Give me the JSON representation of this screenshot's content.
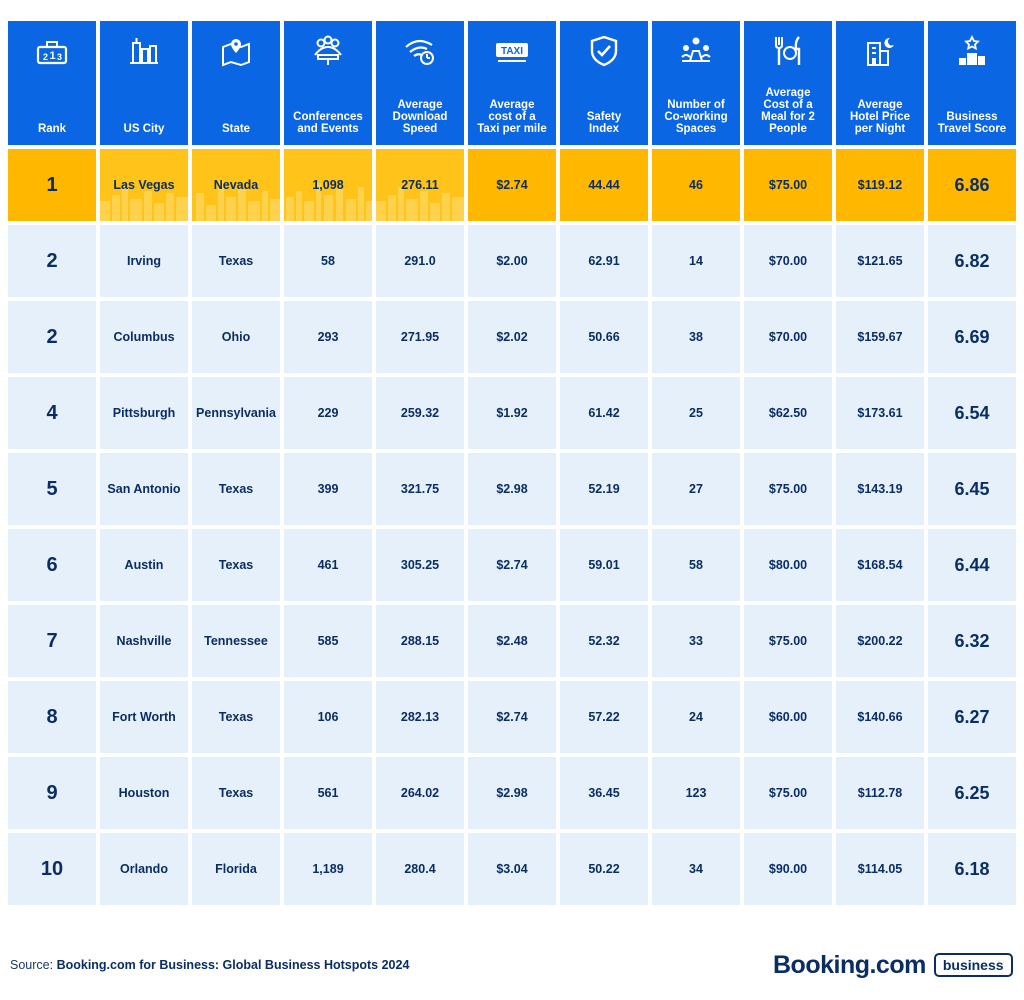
{
  "chart_data": {
    "type": "table",
    "columns": [
      {
        "key": "rank",
        "label": "Rank",
        "icon": "trophy-podium-icon"
      },
      {
        "key": "city",
        "label": "US City",
        "icon": "city-buildings-icon"
      },
      {
        "key": "state",
        "label": "State",
        "icon": "map-pin-icon"
      },
      {
        "key": "conferences",
        "label": "Conferences\nand Events",
        "icon": "conference-people-icon"
      },
      {
        "key": "download",
        "label": "Average\nDownload\nSpeed",
        "icon": "wifi-speed-icon"
      },
      {
        "key": "taxi",
        "label": "Average\ncost of a\nTaxi per mile",
        "icon": "taxi-icon"
      },
      {
        "key": "safety",
        "label": "Safety\nIndex",
        "icon": "shield-check-icon"
      },
      {
        "key": "coworking",
        "label": "Number of\nCo-working\nSpaces",
        "icon": "coworking-desk-icon"
      },
      {
        "key": "meal",
        "label": "Average\nCost of a\nMeal for 2\nPeople",
        "icon": "fork-plate-knife-icon"
      },
      {
        "key": "hotel",
        "label": "Average\nHotel Price\nper Night",
        "icon": "hotel-moon-icon"
      },
      {
        "key": "score",
        "label": "Business\nTravel Score",
        "icon": "podium-star-icon"
      }
    ],
    "rows": [
      {
        "rank": "1",
        "city": "Las Vegas",
        "state": "Nevada",
        "conferences": "1,098",
        "download": "276.11",
        "taxi": "$2.74",
        "safety": "44.44",
        "coworking": "46",
        "meal": "$75.00",
        "hotel": "$119.12",
        "score": "6.86"
      },
      {
        "rank": "2",
        "city": "Irving",
        "state": "Texas",
        "conferences": "58",
        "download": "291.0",
        "taxi": "$2.00",
        "safety": "62.91",
        "coworking": "14",
        "meal": "$70.00",
        "hotel": "$121.65",
        "score": "6.82"
      },
      {
        "rank": "2",
        "city": "Columbus",
        "state": "Ohio",
        "conferences": "293",
        "download": "271.95",
        "taxi": "$2.02",
        "safety": "50.66",
        "coworking": "38",
        "meal": "$70.00",
        "hotel": "$159.67",
        "score": "6.69"
      },
      {
        "rank": "4",
        "city": "Pittsburgh",
        "state": "Pennsylvania",
        "conferences": "229",
        "download": "259.32",
        "taxi": "$1.92",
        "safety": "61.42",
        "coworking": "25",
        "meal": "$62.50",
        "hotel": "$173.61",
        "score": "6.54"
      },
      {
        "rank": "5",
        "city": "San Antonio",
        "state": "Texas",
        "conferences": "399",
        "download": "321.75",
        "taxi": "$2.98",
        "safety": "52.19",
        "coworking": "27",
        "meal": "$75.00",
        "hotel": "$143.19",
        "score": "6.45"
      },
      {
        "rank": "6",
        "city": "Austin",
        "state": "Texas",
        "conferences": "461",
        "download": "305.25",
        "taxi": "$2.74",
        "safety": "59.01",
        "coworking": "58",
        "meal": "$80.00",
        "hotel": "$168.54",
        "score": "6.44"
      },
      {
        "rank": "7",
        "city": "Nashville",
        "state": "Tennessee",
        "conferences": "585",
        "download": "288.15",
        "taxi": "$2.48",
        "safety": "52.32",
        "coworking": "33",
        "meal": "$75.00",
        "hotel": "$200.22",
        "score": "6.32"
      },
      {
        "rank": "8",
        "city": "Fort Worth",
        "state": "Texas",
        "conferences": "106",
        "download": "282.13",
        "taxi": "$2.74",
        "safety": "57.22",
        "coworking": "24",
        "meal": "$60.00",
        "hotel": "$140.66",
        "score": "6.27"
      },
      {
        "rank": "9",
        "city": "Houston",
        "state": "Texas",
        "conferences": "561",
        "download": "264.02",
        "taxi": "$2.98",
        "safety": "36.45",
        "coworking": "123",
        "meal": "$75.00",
        "hotel": "$112.78",
        "score": "6.25"
      },
      {
        "rank": "10",
        "city": "Orlando",
        "state": "Florida",
        "conferences": "1,189",
        "download": "280.4",
        "taxi": "$3.04",
        "safety": "50.22",
        "coworking": "34",
        "meal": "$90.00",
        "hotel": "$114.05",
        "score": "6.18"
      }
    ],
    "highlight_row": 0
  },
  "colors": {
    "header_bg": "#0b66e4",
    "row_bg": "#e6f0fb",
    "highlight_bg": "#ffb700",
    "text_dark": "#0a2e63"
  },
  "footer": {
    "source_prefix": "Source: ",
    "source_text": "Booking.com for Business: Global Business Hotspots 2024"
  },
  "brand": {
    "word": "Booking.com",
    "badge": "business"
  }
}
